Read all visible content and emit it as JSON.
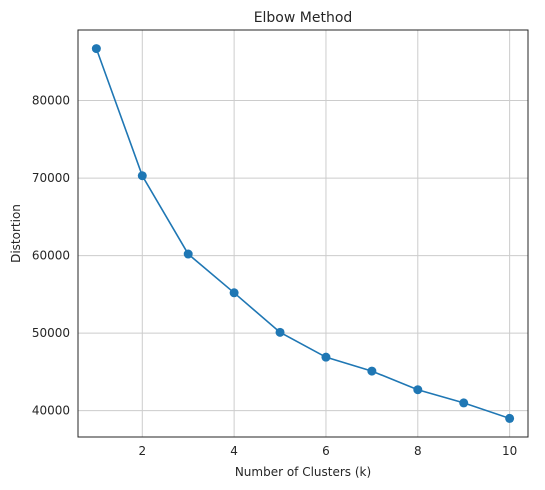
{
  "chart_data": {
    "type": "line",
    "title": "Elbow Method",
    "xlabel": "Number of Clusters (k)",
    "ylabel": "Distortion",
    "x": [
      1,
      2,
      3,
      4,
      5,
      6,
      7,
      8,
      9,
      10
    ],
    "series": [
      {
        "values": [
          86700,
          70300,
          60200,
          55200,
          50100,
          46900,
          45100,
          42700,
          41000,
          39000
        ],
        "color": "#1f77b4",
        "marker": "circle"
      }
    ],
    "xticks": [
      2,
      4,
      6,
      8,
      10
    ],
    "yticks": [
      40000,
      50000,
      60000,
      70000,
      80000
    ],
    "xlim": [
      0.6,
      10.4
    ],
    "ylim": [
      36600,
      89100
    ],
    "grid": true,
    "legend": "none"
  }
}
